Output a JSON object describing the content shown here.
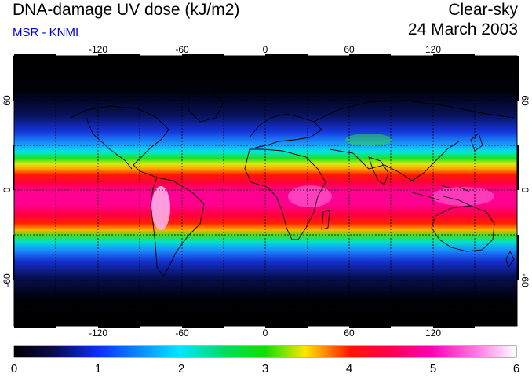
{
  "header": {
    "title": "DNA-damage UV dose (kJ/m2)",
    "subtitle": "MSR - KNMI",
    "sky_condition": "Clear-sky",
    "date": "24 March 2003"
  },
  "map": {
    "projection": "equirectangular",
    "lon_range": [
      -180,
      180
    ],
    "lat_range": [
      -90,
      90
    ],
    "lon_tick_labels": [
      "-120",
      "-60",
      "0",
      "60",
      "120"
    ],
    "lat_tick_labels": [
      "60",
      "0",
      "-60"
    ],
    "gridlines": "dashed every 30 degrees",
    "features": [
      "coastlines",
      "UV dose field"
    ]
  },
  "colorbar": {
    "labels": [
      "0",
      "1",
      "2",
      "3",
      "4",
      "5",
      "6"
    ],
    "min": 0,
    "max": 6,
    "colors": {
      "0": "#000000",
      "1": "#0d2fff",
      "2": "#00e8ff",
      "3": "#00e000",
      "3.5": "#ffe600",
      "4": "#ff0000",
      "5": "#ff00b4",
      "6": "#ffffff"
    }
  }
}
